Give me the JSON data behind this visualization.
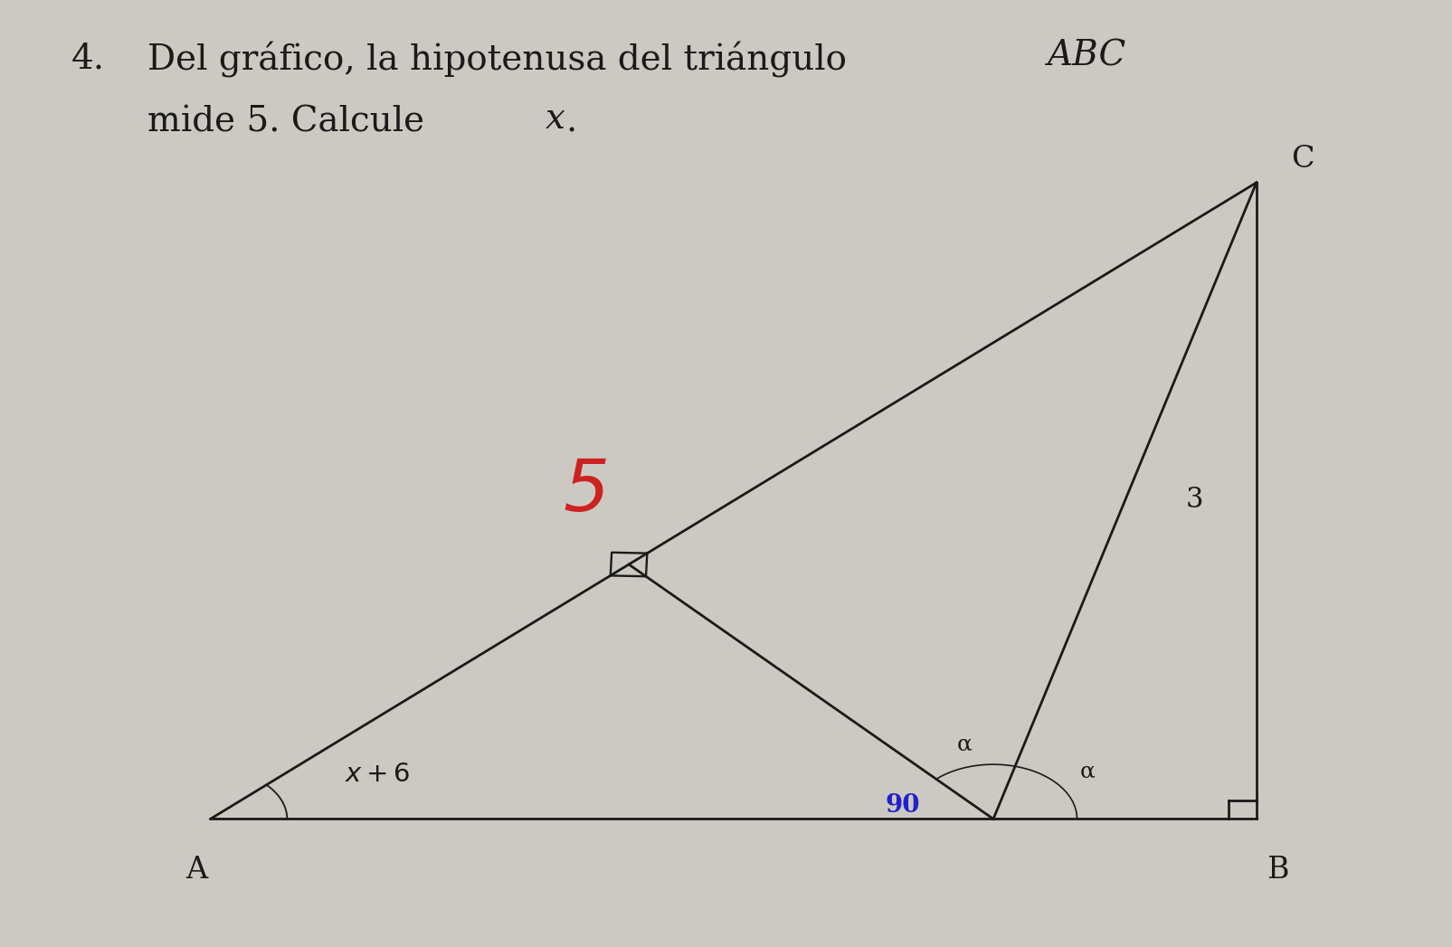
{
  "background_color": "#ccc9c2",
  "text_color": "#1a1a1a",
  "label_5_color": "#cc2222",
  "label_90_color": "#2222cc",
  "A": [
    0.13,
    0.12
  ],
  "B": [
    0.88,
    0.12
  ],
  "C": [
    0.88,
    0.82
  ],
  "line_color": "#1a1a1a",
  "line_width": 2.0,
  "sq_size": 0.018
}
